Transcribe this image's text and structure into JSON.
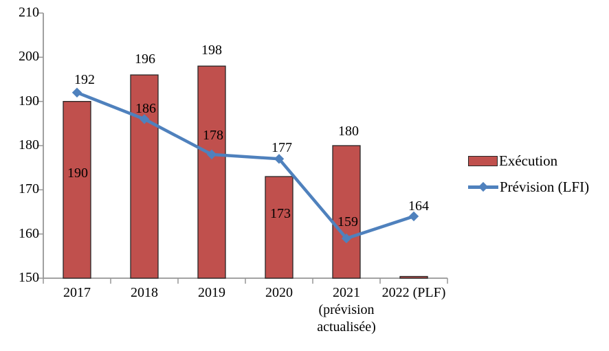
{
  "chart_data": {
    "type": "bar",
    "subtype": "bar-and-line-combo",
    "categories": [
      "2017",
      "2018",
      "2019",
      "2020",
      "2021\n(prévision\nactualisée)",
      "2022 (PLF)"
    ],
    "series": [
      {
        "name": "Exécution",
        "type": "bar",
        "color": "#c0504d",
        "border_color": "#262626",
        "values": [
          190,
          196,
          198,
          173,
          180,
          150
        ],
        "labels": [
          "190",
          "196",
          "198",
          "173",
          "180",
          ""
        ]
      },
      {
        "name": "Prévision (LFI)",
        "type": "line",
        "color": "#4f81bd",
        "marker": "diamond",
        "values": [
          192,
          186,
          178,
          177,
          159,
          164
        ],
        "labels": [
          "192",
          "186",
          "178",
          "177",
          "159",
          "164"
        ]
      }
    ],
    "title": "",
    "xlabel": "",
    "ylabel": "",
    "ylim": [
      150,
      210
    ],
    "yticks": [
      "150",
      "160",
      "170",
      "180",
      "190",
      "200",
      "210"
    ],
    "grid": false,
    "legend_position": "right",
    "axis_color": "#969696"
  },
  "legend": {
    "items": [
      {
        "label": "Exécution"
      },
      {
        "label": "Prévision (LFI)"
      }
    ]
  }
}
